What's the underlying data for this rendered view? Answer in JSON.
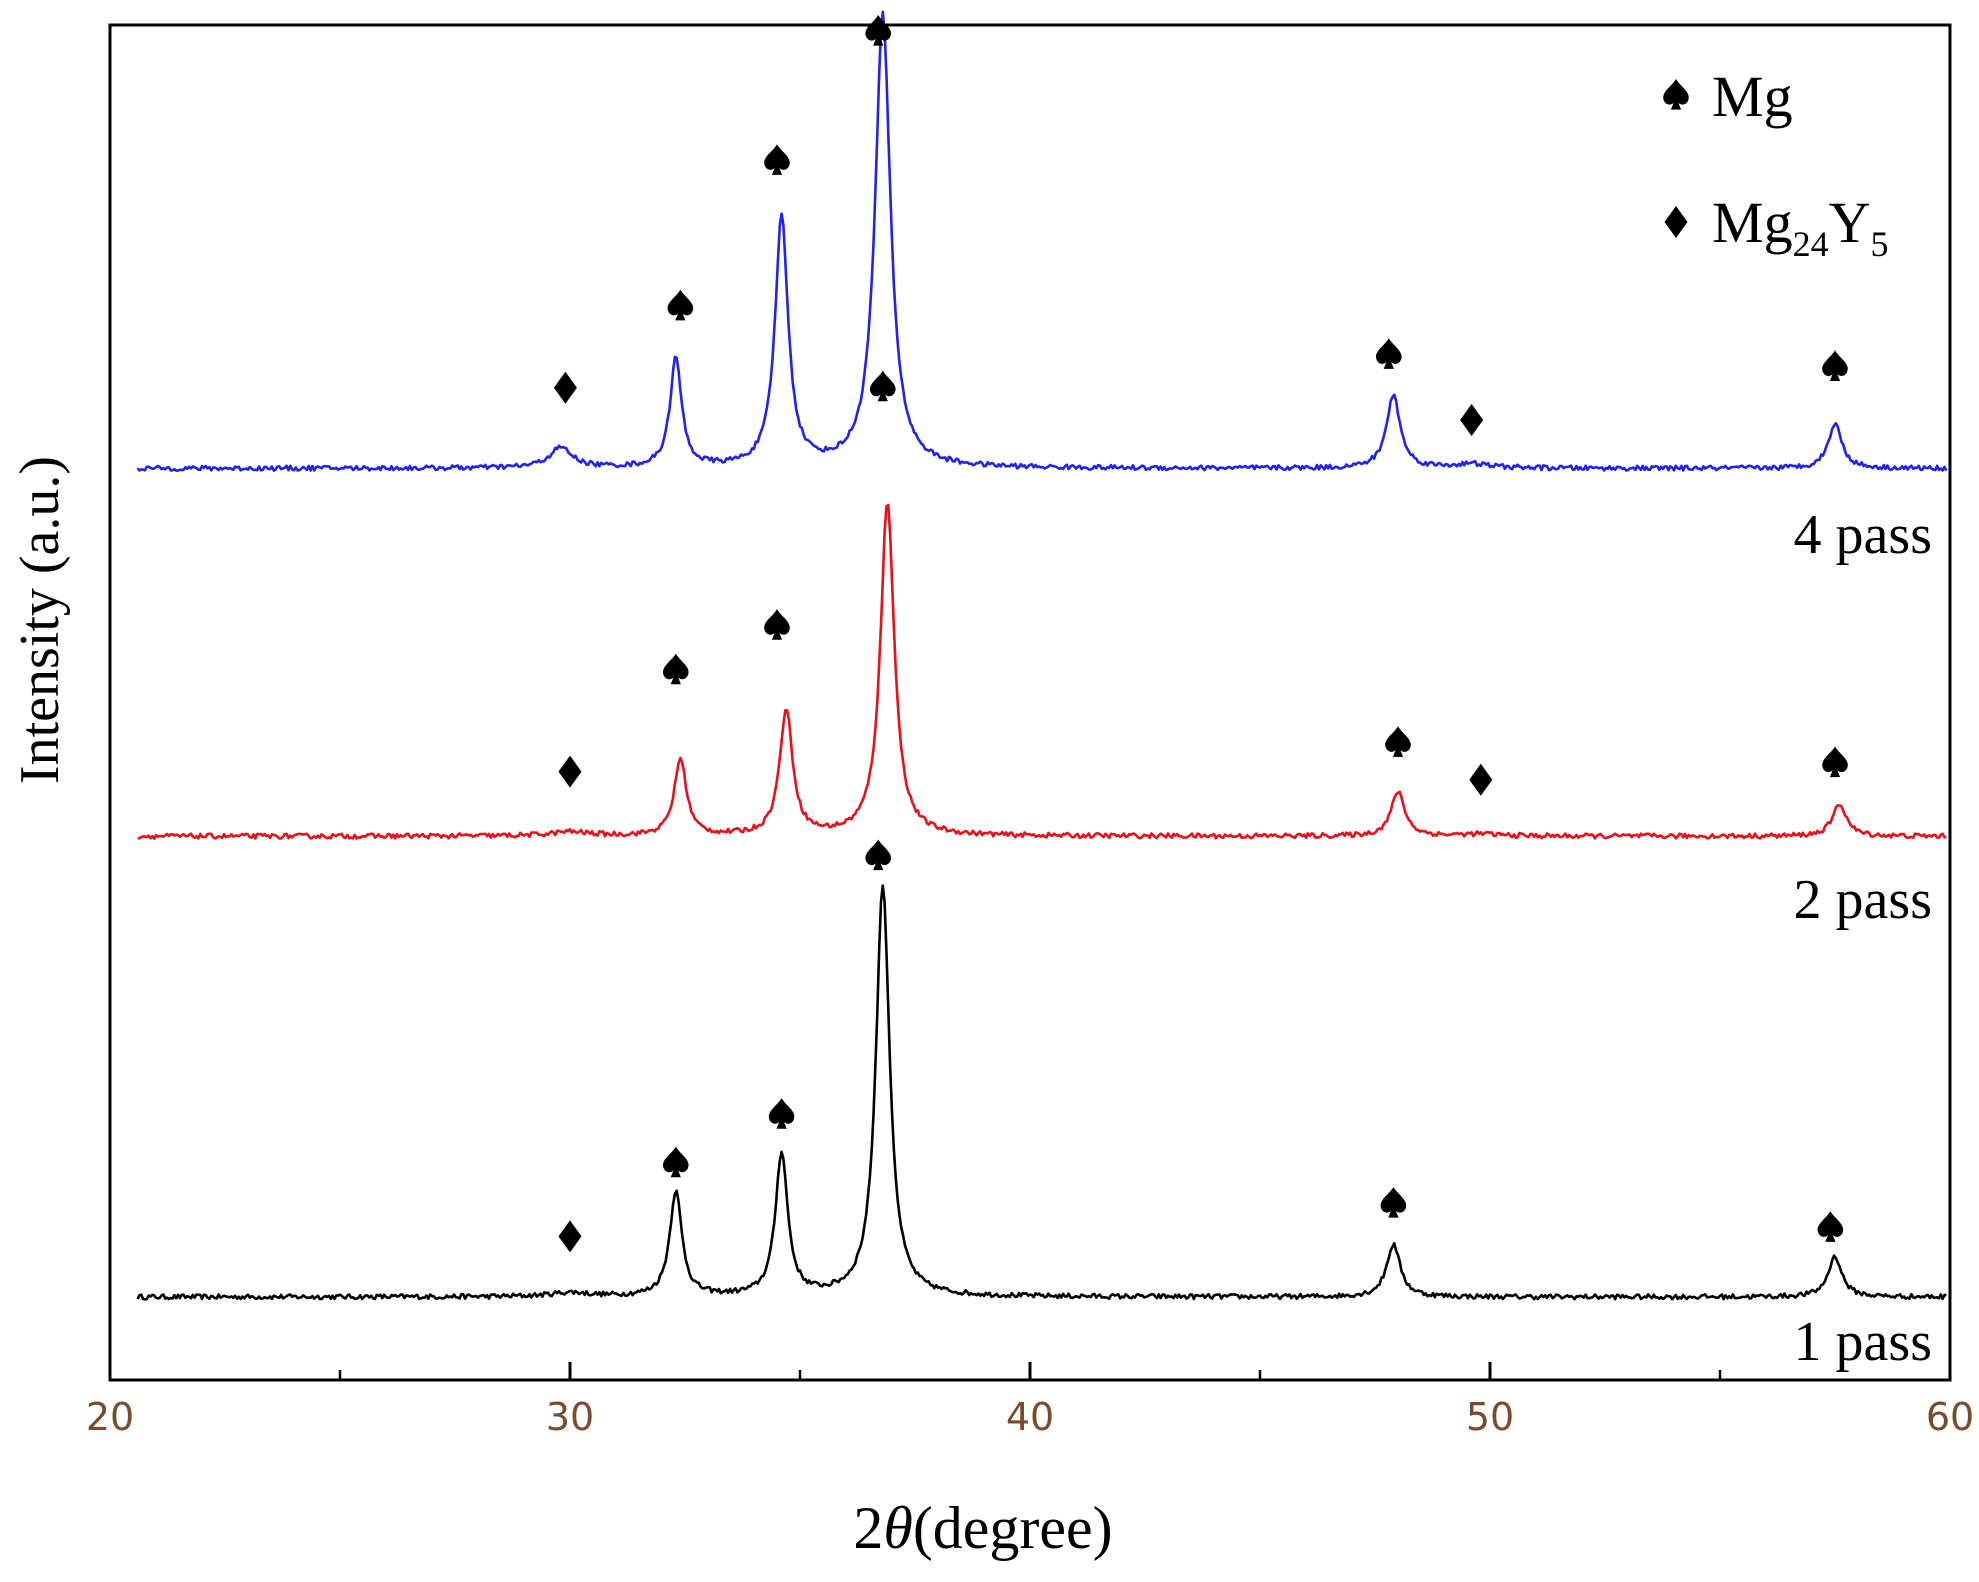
{
  "chart_data": {
    "type": "line",
    "xlabel_prefix": "2",
    "xlabel_symbol": "θ",
    "xlabel_suffix": "(degree)",
    "ylabel": "Intensity (a.u.)",
    "xlim": [
      20,
      60
    ],
    "x_ticks": [
      20,
      30,
      40,
      50,
      60
    ],
    "x_minor_ticks": [
      25,
      35,
      45,
      55
    ],
    "y_ticks_shown": false,
    "grid": false,
    "legend_position": "top-right",
    "legend": [
      {
        "marker": "spade",
        "label_main": "Mg",
        "label_parts": []
      },
      {
        "marker": "diamond",
        "label_main": "Mg",
        "label_parts": [
          {
            "text": "24",
            "sub": true
          },
          {
            "text": "Y",
            "sub": false
          },
          {
            "text": "5",
            "sub": true
          }
        ]
      }
    ],
    "series": [
      {
        "name": "1 pass",
        "color": "#000000",
        "baseline": 0,
        "peaks": [
          {
            "x": 30.0,
            "height": 0.1,
            "width": 0.5,
            "phase": "Mg24Y5"
          },
          {
            "x": 32.3,
            "height": 2.6,
            "width": 0.16,
            "phase": "Mg"
          },
          {
            "x": 34.6,
            "height": 3.55,
            "width": 0.16,
            "phase": "Mg"
          },
          {
            "x": 36.8,
            "height": 10.2,
            "width": 0.18,
            "phase": "Mg"
          },
          {
            "x": 47.9,
            "height": 1.3,
            "width": 0.18,
            "phase": "Mg"
          },
          {
            "x": 57.5,
            "height": 1.0,
            "width": 0.18,
            "phase": "Mg"
          }
        ],
        "markers": [
          {
            "x": 30.0,
            "level": 1.5,
            "type": "diamond"
          },
          {
            "x": 32.3,
            "level": 3.3,
            "type": "spade"
          },
          {
            "x": 34.6,
            "level": 4.5,
            "type": "spade"
          },
          {
            "x": 36.7,
            "level": 10.9,
            "type": "spade"
          },
          {
            "x": 47.9,
            "level": 2.3,
            "type": "spade"
          },
          {
            "x": 57.4,
            "level": 1.7,
            "type": "spade"
          }
        ]
      },
      {
        "name": "2 pass",
        "color": "#e8101a",
        "baseline": 11.4,
        "peaks": [
          {
            "x": 30.0,
            "height": 0.1,
            "width": 0.5,
            "phase": "Mg24Y5"
          },
          {
            "x": 32.4,
            "height": 1.9,
            "width": 0.16,
            "phase": "Mg"
          },
          {
            "x": 34.7,
            "height": 3.1,
            "width": 0.17,
            "phase": "Mg"
          },
          {
            "x": 36.9,
            "height": 8.3,
            "width": 0.18,
            "phase": "Mg"
          },
          {
            "x": 48.0,
            "height": 1.1,
            "width": 0.18,
            "phase": "Mg"
          },
          {
            "x": 49.8,
            "height": 0.05,
            "width": 0.5,
            "phase": "Mg24Y5"
          },
          {
            "x": 57.6,
            "height": 0.8,
            "width": 0.18,
            "phase": "Mg"
          }
        ],
        "markers": [
          {
            "x": 30.0,
            "level": 13.0,
            "type": "diamond"
          },
          {
            "x": 32.3,
            "level": 15.5,
            "type": "spade"
          },
          {
            "x": 34.5,
            "level": 16.6,
            "type": "spade"
          },
          {
            "x": 36.8,
            "level": 22.5,
            "type": "spade"
          },
          {
            "x": 48.0,
            "level": 13.7,
            "type": "spade"
          },
          {
            "x": 49.8,
            "level": 12.8,
            "type": "diamond"
          },
          {
            "x": 57.5,
            "level": 13.2,
            "type": "spade"
          }
        ]
      },
      {
        "name": "4 pass",
        "color": "#2222ee",
        "baseline": 20.5,
        "peaks": [
          {
            "x": 29.8,
            "height": 0.5,
            "width": 0.3,
            "phase": "Mg24Y5"
          },
          {
            "x": 32.3,
            "height": 2.7,
            "width": 0.15,
            "phase": "Mg"
          },
          {
            "x": 34.6,
            "height": 6.2,
            "width": 0.17,
            "phase": "Mg"
          },
          {
            "x": 36.8,
            "height": 11.2,
            "width": 0.2,
            "phase": "Mg"
          },
          {
            "x": 47.9,
            "height": 1.8,
            "width": 0.18,
            "phase": "Mg"
          },
          {
            "x": 49.6,
            "height": 0.1,
            "width": 0.5,
            "phase": "Mg24Y5"
          },
          {
            "x": 57.5,
            "height": 1.1,
            "width": 0.18,
            "phase": "Mg"
          }
        ],
        "markers": [
          {
            "x": 29.9,
            "level": 22.5,
            "type": "diamond"
          },
          {
            "x": 32.4,
            "level": 24.5,
            "type": "spade"
          },
          {
            "x": 34.5,
            "level": 28.1,
            "type": "spade"
          },
          {
            "x": 36.7,
            "level": 31.3,
            "type": "spade"
          },
          {
            "x": 47.8,
            "level": 23.3,
            "type": "spade"
          },
          {
            "x": 49.6,
            "level": 21.7,
            "type": "diamond"
          },
          {
            "x": 57.5,
            "level": 23.0,
            "type": "spade"
          }
        ]
      }
    ]
  }
}
